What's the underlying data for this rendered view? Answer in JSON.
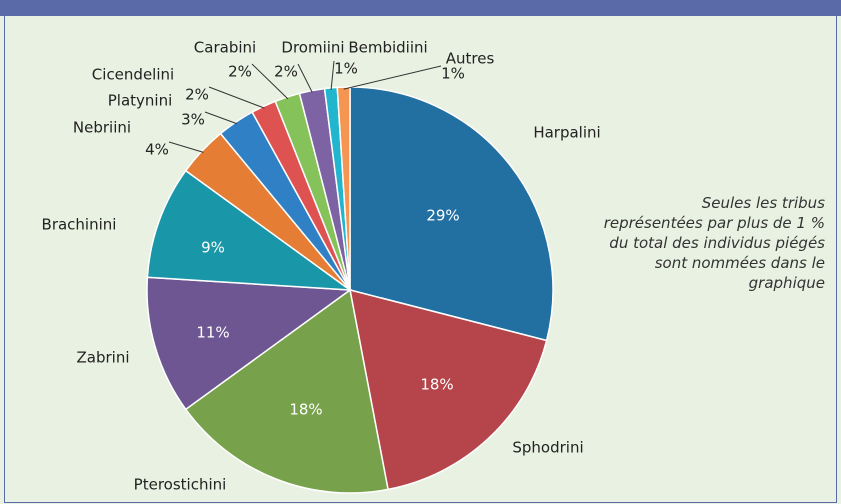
{
  "chart_data": {
    "type": "pie",
    "categories": [
      "Harpalini",
      "Sphodrini",
      "Pterostichini",
      "Zabrini",
      "Brachinini",
      "Nebriini",
      "Platynini",
      "Cicendelini",
      "Carabini",
      "Dromiini",
      "Bembidiini",
      "Autres"
    ],
    "values": [
      29,
      18,
      18,
      11,
      9,
      4,
      3,
      2,
      2,
      2,
      1,
      1
    ],
    "value_labels": [
      "29%",
      "18%",
      "18%",
      "11%",
      "9%",
      "4%",
      "3%",
      "2%",
      "2%",
      "2%",
      "1%",
      "1%"
    ],
    "colors": [
      "#2270a2",
      "#b5454a",
      "#77a24b",
      "#6e5692",
      "#1996a8",
      "#e67d35",
      "#2f80c4",
      "#df5252",
      "#86c25a",
      "#7d63a3",
      "#21b6cd",
      "#f49552"
    ],
    "annotation": "Seules les tribus représentées par plus de 1 % du total des individus piégés sont nommées dans le graphique"
  }
}
